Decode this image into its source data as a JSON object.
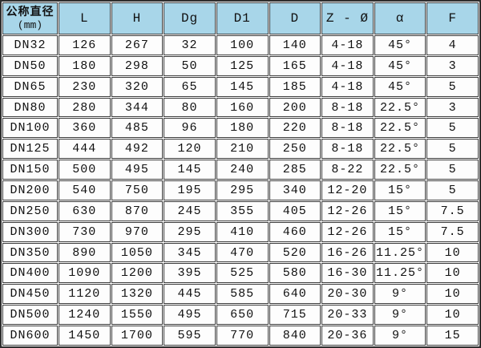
{
  "colors": {
    "header_bg": "#a8d6e9",
    "grid_line": "#3c3c3c",
    "outer_border": "#2e2e2e",
    "text": "#111111"
  },
  "table": {
    "corner": {
      "title": "公称直径",
      "unit": "(mm)"
    },
    "columns": [
      "L",
      "H",
      "Dg",
      "D1",
      "D",
      "Z - Ø",
      "α",
      "F"
    ],
    "rows": [
      {
        "dn": "DN32",
        "values": [
          "126",
          "267",
          "32",
          "100",
          "140",
          "4-18",
          "45°",
          "4"
        ]
      },
      {
        "dn": "DN50",
        "values": [
          "180",
          "298",
          "50",
          "125",
          "165",
          "4-18",
          "45°",
          "3"
        ]
      },
      {
        "dn": "DN65",
        "values": [
          "230",
          "320",
          "65",
          "145",
          "185",
          "4-18",
          "45°",
          "5"
        ]
      },
      {
        "dn": "DN80",
        "values": [
          "280",
          "344",
          "80",
          "160",
          "200",
          "8-18",
          "22.5°",
          "3"
        ]
      },
      {
        "dn": "DN100",
        "values": [
          "360",
          "485",
          "96",
          "180",
          "220",
          "8-18",
          "22.5°",
          "5"
        ]
      },
      {
        "dn": "DN125",
        "values": [
          "444",
          "492",
          "120",
          "210",
          "250",
          "8-18",
          "22.5°",
          "5"
        ]
      },
      {
        "dn": "DN150",
        "values": [
          "500",
          "495",
          "145",
          "240",
          "285",
          "8-22",
          "22.5°",
          "5"
        ]
      },
      {
        "dn": "DN200",
        "values": [
          "540",
          "750",
          "195",
          "295",
          "340",
          "12-20",
          "15°",
          "5"
        ]
      },
      {
        "dn": "DN250",
        "values": [
          "630",
          "870",
          "245",
          "355",
          "405",
          "12-26",
          "15°",
          "7.5"
        ]
      },
      {
        "dn": "DN300",
        "values": [
          "730",
          "970",
          "295",
          "410",
          "460",
          "12-26",
          "15°",
          "7.5"
        ]
      },
      {
        "dn": "DN350",
        "values": [
          "890",
          "1050",
          "345",
          "470",
          "520",
          "16-26",
          "11.25°",
          "10"
        ]
      },
      {
        "dn": "DN400",
        "values": [
          "1090",
          "1200",
          "395",
          "525",
          "580",
          "16-30",
          "11.25°",
          "10"
        ]
      },
      {
        "dn": "DN450",
        "values": [
          "1120",
          "1320",
          "445",
          "585",
          "640",
          "20-30",
          "9°",
          "10"
        ]
      },
      {
        "dn": "DN500",
        "values": [
          "1240",
          "1550",
          "495",
          "650",
          "715",
          "20-33",
          "9°",
          "10"
        ]
      },
      {
        "dn": "DN600",
        "values": [
          "1450",
          "1700",
          "595",
          "770",
          "840",
          "20-36",
          "9°",
          "15"
        ]
      }
    ]
  }
}
